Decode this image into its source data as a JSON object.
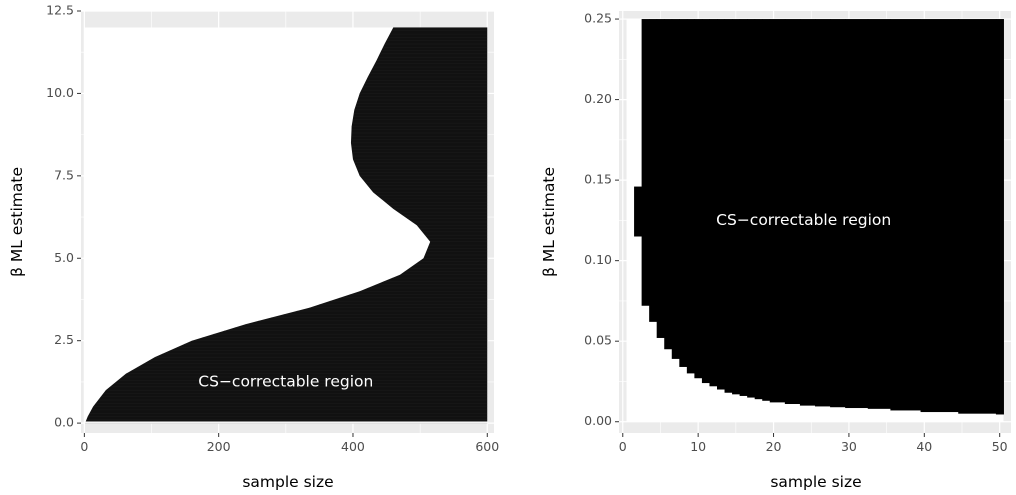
{
  "chart_data": [
    {
      "type": "area",
      "title": "",
      "xlabel": "sample size",
      "ylabel": "β ML estimate",
      "xlim": [
        -5,
        610
      ],
      "ylim": [
        -0.3,
        12.5
      ],
      "x_ticks": [
        0,
        200,
        400,
        600
      ],
      "x_tick_labels": [
        "0",
        "200",
        "400",
        "600"
      ],
      "y_ticks": [
        0,
        2.5,
        5,
        7.5,
        10,
        12.5
      ],
      "y_tick_labels": [
        "0.0",
        "2.5",
        "5.0",
        "7.5",
        "10.0",
        "12.5"
      ],
      "grid": true,
      "region_label": "CS−correctable region",
      "region_color": "#000000",
      "outside_color": "#ffffff",
      "panel_background": "#ebebeb",
      "region_x_max": 600,
      "region_y_max": 12,
      "region_y_min": 0.05,
      "boundary": {
        "y": [
          0.05,
          0.2,
          0.5,
          1.0,
          1.5,
          2.0,
          2.5,
          3.0,
          3.5,
          4.0,
          4.5,
          5.0,
          5.5,
          6.0,
          6.5,
          7.0,
          7.5,
          8.0,
          8.5,
          9.0,
          9.5,
          10.0,
          10.5,
          11.0,
          11.5,
          12.0
        ],
        "x": [
          2,
          5,
          13,
          32,
          62,
          105,
          160,
          240,
          335,
          410,
          470,
          505,
          515,
          495,
          460,
          430,
          410,
          400,
          397,
          398,
          402,
          410,
          422,
          435,
          447,
          460
        ]
      },
      "label_position": {
        "x": 300,
        "y": 1.25
      }
    },
    {
      "type": "area",
      "title": "",
      "xlabel": "sample size",
      "ylabel": "β ML estimate",
      "xlim": [
        -0.5,
        51.5
      ],
      "ylim": [
        -0.007,
        0.255
      ],
      "x_ticks": [
        0,
        10,
        20,
        30,
        40,
        50
      ],
      "x_tick_labels": [
        "0",
        "10",
        "20",
        "30",
        "40",
        "50"
      ],
      "y_ticks": [
        0,
        0.05,
        0.1,
        0.15,
        0.2,
        0.25
      ],
      "y_tick_labels": [
        "0.00",
        "0.05",
        "0.10",
        "0.15",
        "0.20",
        "0.25"
      ],
      "grid": true,
      "region_label": "CS−correctable region",
      "region_color": "#000000",
      "outside_color": "#ffffff",
      "panel_background": "#ebebeb",
      "white_background_x": [
        0.5,
        2.5
      ],
      "region_y_top": 0.25,
      "step_floor": {
        "n": [
          2,
          3,
          4,
          5,
          6,
          7,
          8,
          9,
          10,
          11,
          12,
          13,
          14,
          15,
          16,
          17,
          18,
          19,
          20,
          22,
          24,
          26,
          28,
          30,
          33,
          36,
          40,
          45,
          50
        ],
        "y": [
          0.115,
          0.072,
          0.062,
          0.052,
          0.045,
          0.039,
          0.034,
          0.03,
          0.027,
          0.024,
          0.022,
          0.02,
          0.018,
          0.017,
          0.016,
          0.015,
          0.014,
          0.013,
          0.012,
          0.011,
          0.01,
          0.0095,
          0.009,
          0.0085,
          0.008,
          0.007,
          0.006,
          0.005,
          0.0045
        ]
      },
      "step_top": {
        "n": [
          2,
          3,
          4
        ],
        "y": [
          0.146,
          0.25,
          0.25
        ]
      },
      "label_position": {
        "x": 24,
        "y": 0.125
      }
    }
  ]
}
